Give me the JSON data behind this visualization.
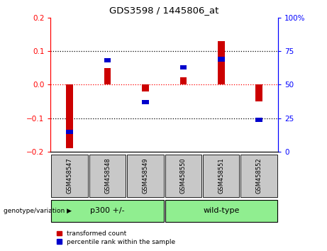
{
  "title": "GDS3598 / 1445806_at",
  "samples": [
    "GSM458547",
    "GSM458548",
    "GSM458549",
    "GSM458550",
    "GSM458551",
    "GSM458552"
  ],
  "red_bars": [
    -0.19,
    0.05,
    -0.02,
    0.022,
    0.13,
    -0.05
  ],
  "blue_squares_pct": [
    15,
    68,
    37,
    63,
    69,
    24
  ],
  "groups": [
    {
      "label": "p300 +/-",
      "start": 0,
      "end": 3
    },
    {
      "label": "wild-type",
      "start": 3,
      "end": 6
    }
  ],
  "ylim": [
    -0.2,
    0.2
  ],
  "right_ylim": [
    0,
    100
  ],
  "bar_color": "#CC0000",
  "square_color": "#0000CC",
  "tick_label_box_color": "#C8C8C8",
  "group_box_color": "#90EE90",
  "genotype_label": "genotype/variation",
  "legend_labels": [
    "transformed count",
    "percentile rank within the sample"
  ],
  "bar_width": 0.18
}
